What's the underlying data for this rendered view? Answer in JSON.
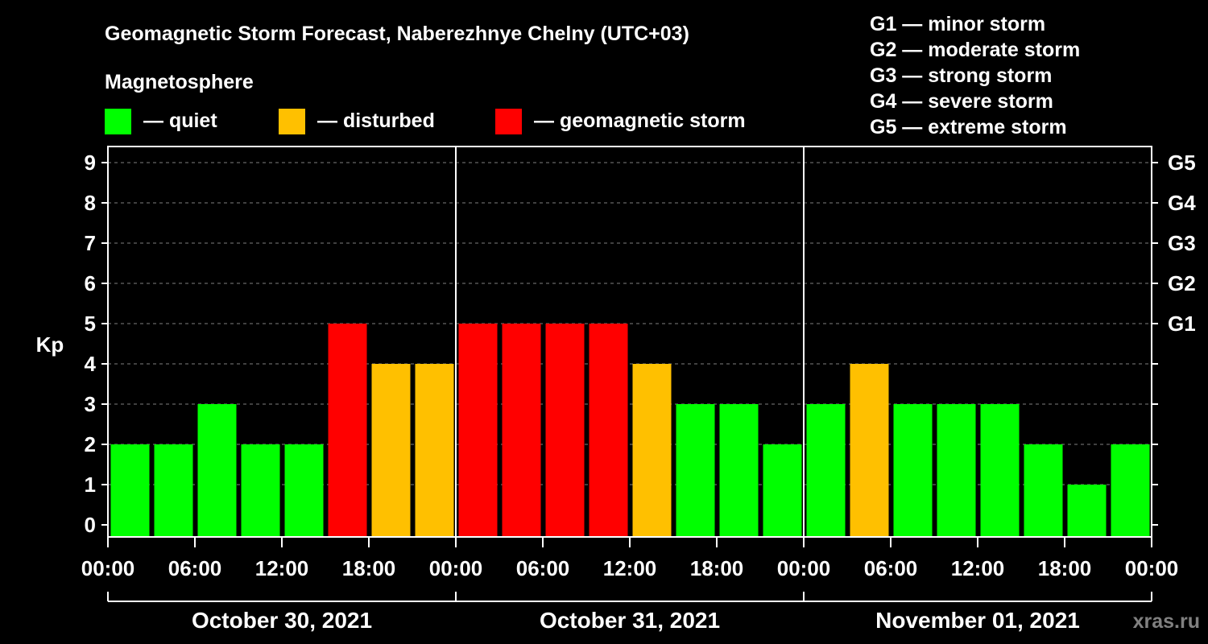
{
  "chart_data": {
    "type": "bar",
    "title": "Geomagnetic Storm Forecast, Naberezhnye Chelny (UTC+03)",
    "ylabel": "Kp",
    "ylim": [
      0,
      9
    ],
    "y_ticks": [
      "0",
      "1",
      "2",
      "3",
      "4",
      "5",
      "6",
      "7",
      "8",
      "9"
    ],
    "right_axis_labels": [
      {
        "kp": 5,
        "label": "G1"
      },
      {
        "kp": 6,
        "label": "G2"
      },
      {
        "kp": 7,
        "label": "G3"
      },
      {
        "kp": 8,
        "label": "G4"
      },
      {
        "kp": 9,
        "label": "G5"
      }
    ],
    "x_tick_labels": [
      "00:00",
      "06:00",
      "12:00",
      "18:00",
      "00:00",
      "06:00",
      "12:00",
      "18:00",
      "00:00",
      "06:00",
      "12:00",
      "18:00",
      "00:00"
    ],
    "days": [
      "October 30, 2021",
      "October 31, 2021",
      "November 01, 2021"
    ],
    "values": [
      2,
      2,
      3,
      2,
      2,
      5,
      4,
      4,
      5,
      5,
      5,
      5,
      4,
      3,
      3,
      2,
      3,
      4,
      3,
      3,
      3,
      2,
      1,
      2
    ],
    "grid": "horizontal dashed",
    "colors": {
      "quiet": "#00ff00",
      "disturbed": "#ffc000",
      "storm": "#ff0000",
      "background": "#000000",
      "foreground": "#ffffff"
    },
    "legend": {
      "heading": "Magnetosphere",
      "items": [
        {
          "key": "quiet",
          "label": "— quiet"
        },
        {
          "key": "disturbed",
          "label": "— disturbed"
        },
        {
          "key": "storm",
          "label": "— geomagnetic storm"
        }
      ]
    },
    "storm_scale": [
      "G1 — minor storm",
      "G2 — moderate storm",
      "G3 — strong storm",
      "G4 — severe storm",
      "G5 — extreme storm"
    ]
  },
  "watermark": "xras.ru"
}
